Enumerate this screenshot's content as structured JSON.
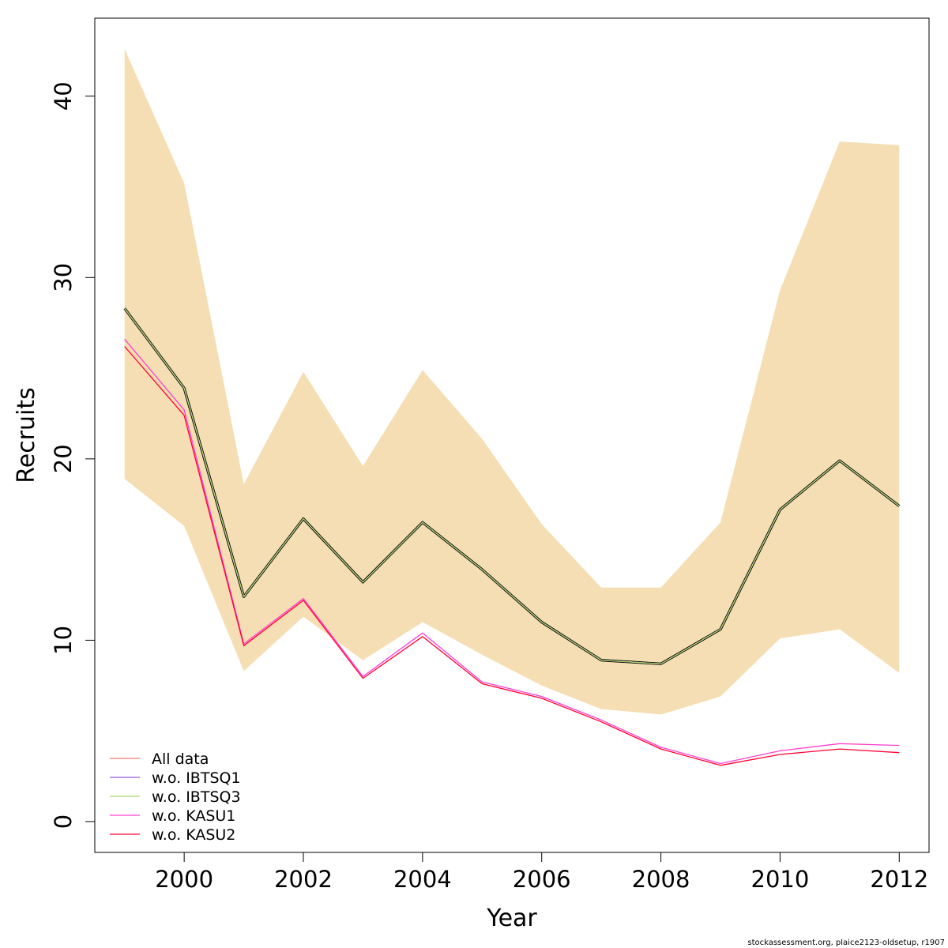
{
  "chart_data": {
    "type": "line",
    "xlabel": "Year",
    "ylabel": "Recruits",
    "xlim": [
      1998.5,
      2012.5
    ],
    "ylim": [
      -1.7,
      44.3
    ],
    "x_ticks": [
      2000,
      2002,
      2004,
      2006,
      2008,
      2010,
      2012
    ],
    "y_ticks": [
      0,
      10,
      20,
      30,
      40
    ],
    "x": [
      1999,
      2000,
      2001,
      2002,
      2003,
      2004,
      2005,
      2006,
      2007,
      2008,
      2009,
      2010,
      2011,
      2012
    ],
    "confidence_band": {
      "color": "#F5DEB3",
      "lower": [
        18.9,
        16.3,
        8.3,
        11.3,
        8.9,
        11.0,
        9.2,
        7.5,
        6.2,
        5.9,
        6.9,
        10.1,
        10.6,
        8.2
      ],
      "upper": [
        42.6,
        35.2,
        18.6,
        24.8,
        19.6,
        24.9,
        21.1,
        16.4,
        12.9,
        12.9,
        16.5,
        29.3,
        37.5,
        37.3
      ]
    },
    "main_series": {
      "color": "#000000",
      "values": [
        28.3,
        23.9,
        12.4,
        16.7,
        13.2,
        16.5,
        13.9,
        11.0,
        8.9,
        8.7,
        10.6,
        17.2,
        19.9,
        17.4
      ]
    },
    "series": [
      {
        "name": "All data",
        "color": "#F8766D",
        "values": [
          28.3,
          23.9,
          12.4,
          16.7,
          13.2,
          16.5,
          13.9,
          11.0,
          8.9,
          8.7,
          10.6,
          17.2,
          19.9,
          17.4
        ]
      },
      {
        "name": "w.o. IBTSQ1",
        "color": "#9B59D0",
        "values": [
          28.3,
          23.9,
          12.4,
          16.7,
          13.2,
          16.5,
          13.9,
          11.0,
          8.9,
          8.7,
          10.6,
          17.2,
          19.9,
          17.4
        ]
      },
      {
        "name": "w.o. IBTSQ3",
        "color": "#A8D86E",
        "values": [
          28.3,
          23.9,
          12.4,
          16.7,
          13.2,
          16.5,
          13.9,
          11.0,
          8.9,
          8.7,
          10.6,
          17.2,
          19.9,
          17.4
        ]
      },
      {
        "name": "w.o. KASU1",
        "color": "#FF40D0",
        "values": [
          26.6,
          22.7,
          9.8,
          12.3,
          8.0,
          10.4,
          7.7,
          6.9,
          5.6,
          4.1,
          3.2,
          3.9,
          4.3,
          4.2
        ]
      },
      {
        "name": "w.o. KASU2",
        "color": "#FF0033",
        "values": [
          26.2,
          22.4,
          9.7,
          12.2,
          7.9,
          10.2,
          7.6,
          6.8,
          5.5,
          4.0,
          3.1,
          3.7,
          4.0,
          3.8
        ]
      }
    ],
    "legend_position": "bottom-left",
    "grid": false
  },
  "footer": "stockassessment.org, plaice2123-oldsetup, r1907"
}
